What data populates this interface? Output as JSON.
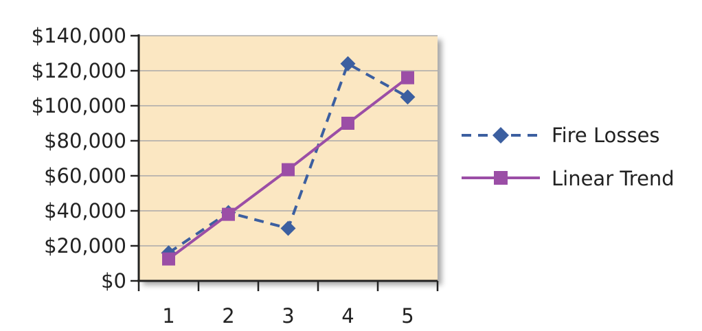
{
  "chart_data": {
    "type": "line",
    "x": [
      "1",
      "2",
      "3",
      "4",
      "5"
    ],
    "ylim": [
      0,
      140000
    ],
    "y_ticks": [
      0,
      20000,
      40000,
      60000,
      80000,
      100000,
      120000,
      140000
    ],
    "y_tick_labels": [
      "$0",
      "$20,000",
      "$40,000",
      "$60,000",
      "$80,000",
      "$100,000",
      "$120,000",
      "$140,000"
    ],
    "grid": true,
    "legend_position": "right",
    "plot_background": "#fbe7c2",
    "series": [
      {
        "name": "Fire Losses",
        "values": [
          16000,
          39000,
          30000,
          124000,
          105000
        ],
        "color": "#3c5fa0",
        "line_style": "dashed",
        "marker": "diamond"
      },
      {
        "name": "Linear Trend",
        "values": [
          12500,
          38000,
          63500,
          90000,
          116000
        ],
        "color": "#9b4ea6",
        "line_style": "solid",
        "marker": "square"
      }
    ]
  }
}
